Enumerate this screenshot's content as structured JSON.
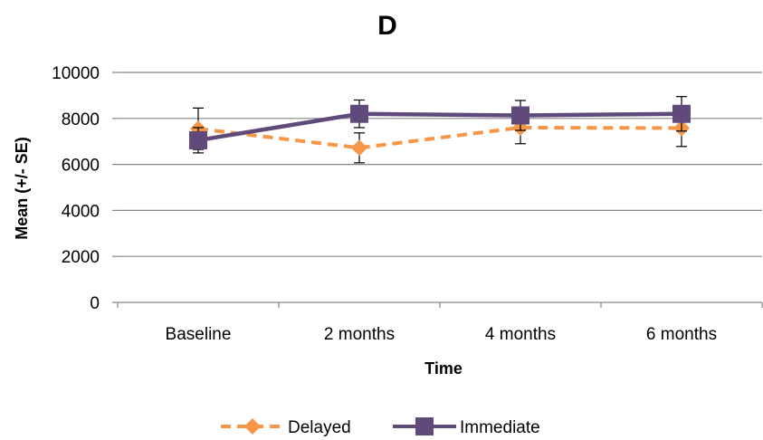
{
  "chart_data": {
    "type": "line",
    "title": "D",
    "xlabel": "Time",
    "ylabel": "Mean (+/- SE)",
    "categories": [
      "Baseline",
      "2 months",
      "4 months",
      "6 months"
    ],
    "ylim": [
      0,
      10000
    ],
    "yticks": [
      0,
      2000,
      4000,
      6000,
      8000,
      10000
    ],
    "grid": "horizontal",
    "legend": "bottom",
    "series": [
      {
        "name": "Delayed",
        "values": [
          7550,
          6720,
          7600,
          7580
        ],
        "error": [
          900,
          650,
          700,
          800
        ],
        "color": "#F79646",
        "line_style": "dashed",
        "marker": "diamond"
      },
      {
        "name": "Immediate",
        "values": [
          7050,
          8200,
          8130,
          8200
        ],
        "error": [
          550,
          600,
          650,
          750
        ],
        "color": "#604A7B",
        "line_style": "solid",
        "marker": "square"
      }
    ]
  }
}
